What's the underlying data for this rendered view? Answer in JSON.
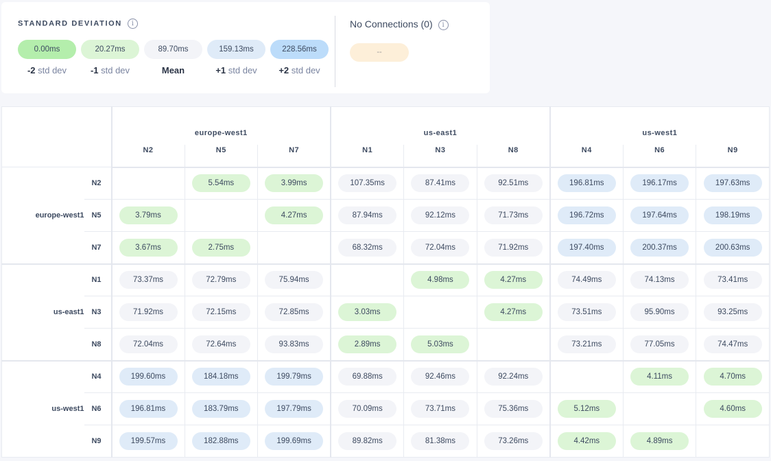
{
  "legend": {
    "title": "STANDARD DEVIATION",
    "info_icon": "i",
    "items": [
      {
        "value": "0.00ms",
        "sign": "-2",
        "label": "std dev",
        "color": "#b4eeac"
      },
      {
        "value": "20.27ms",
        "sign": "-1",
        "label": "std dev",
        "color": "#dcf5d6"
      },
      {
        "value": "89.70ms",
        "sign": "Mean",
        "label": "",
        "color": "#f3f4f8"
      },
      {
        "value": "159.13ms",
        "sign": "+1",
        "label": "std dev",
        "color": "#dfebf8"
      },
      {
        "value": "228.56ms",
        "sign": "+2",
        "label": "std dev",
        "color": "#bcdcfa"
      }
    ],
    "no_connections": {
      "title": "No Connections (0)",
      "value": "--",
      "color": "#fdefd9"
    }
  },
  "matrix": {
    "regions": [
      {
        "name": "europe-west1",
        "nodes": [
          "N2",
          "N5",
          "N7"
        ]
      },
      {
        "name": "us-east1",
        "nodes": [
          "N1",
          "N3",
          "N8"
        ]
      },
      {
        "name": "us-west1",
        "nodes": [
          "N4",
          "N6",
          "N9"
        ]
      }
    ],
    "cell_colors": {
      "low": "#dcf5d6",
      "mid": "#f3f4f8",
      "high": "#dfebf8"
    },
    "rows": [
      [
        "",
        "5.54ms",
        "3.99ms",
        "107.35ms",
        "87.41ms",
        "92.51ms",
        "196.81ms",
        "196.17ms",
        "197.63ms"
      ],
      [
        "3.79ms",
        "",
        "4.27ms",
        "87.94ms",
        "92.12ms",
        "71.73ms",
        "196.72ms",
        "197.64ms",
        "198.19ms"
      ],
      [
        "3.67ms",
        "2.75ms",
        "",
        "68.32ms",
        "72.04ms",
        "71.92ms",
        "197.40ms",
        "200.37ms",
        "200.63ms"
      ],
      [
        "73.37ms",
        "72.79ms",
        "75.94ms",
        "",
        "4.98ms",
        "4.27ms",
        "74.49ms",
        "74.13ms",
        "73.41ms"
      ],
      [
        "71.92ms",
        "72.15ms",
        "72.85ms",
        "3.03ms",
        "",
        "4.27ms",
        "73.51ms",
        "95.90ms",
        "93.25ms"
      ],
      [
        "72.04ms",
        "72.64ms",
        "93.83ms",
        "2.89ms",
        "5.03ms",
        "",
        "73.21ms",
        "77.05ms",
        "74.47ms"
      ],
      [
        "199.60ms",
        "184.18ms",
        "199.79ms",
        "69.88ms",
        "92.46ms",
        "92.24ms",
        "",
        "4.11ms",
        "4.70ms"
      ],
      [
        "196.81ms",
        "183.79ms",
        "197.79ms",
        "70.09ms",
        "73.71ms",
        "75.36ms",
        "5.12ms",
        "",
        "4.60ms"
      ],
      [
        "199.57ms",
        "182.88ms",
        "199.69ms",
        "89.82ms",
        "81.38ms",
        "73.26ms",
        "4.42ms",
        "4.89ms",
        ""
      ]
    ]
  }
}
